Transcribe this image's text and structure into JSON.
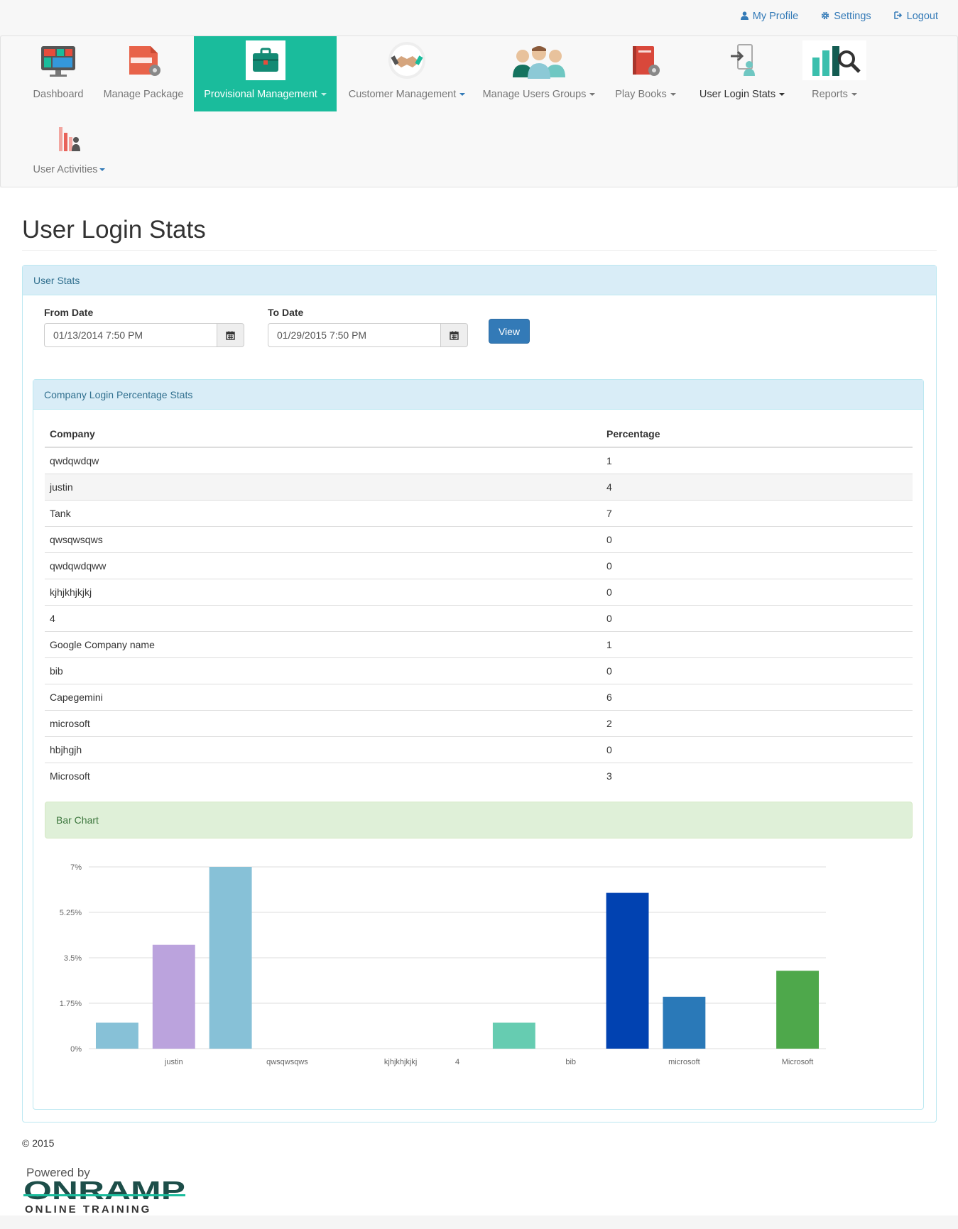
{
  "top_links": [
    {
      "label": "My Profile",
      "icon": "user-icon"
    },
    {
      "label": "Settings",
      "icon": "gear-icon"
    },
    {
      "label": "Logout",
      "icon": "logout-icon"
    }
  ],
  "nav": {
    "items": [
      {
        "label": "Dashboard",
        "icon": "dashboard-icon"
      },
      {
        "label": "Manage Package",
        "icon": "package-icon"
      },
      {
        "label": "Provisional Management",
        "icon": "briefcase-icon",
        "active": true
      },
      {
        "label": "Customer Management",
        "icon": "handshake-icon"
      },
      {
        "label": "Manage Users Groups",
        "icon": "users-group-icon"
      },
      {
        "label": "Play Books",
        "icon": "playbook-icon"
      },
      {
        "label": "User Login Stats",
        "icon": "login-stats-icon"
      },
      {
        "label": "Reports",
        "icon": "reports-icon"
      },
      {
        "label": "User Activities",
        "icon": "activities-icon"
      }
    ]
  },
  "page": {
    "title": "User Login Stats",
    "panel_title": "User Stats",
    "from_label": "From Date",
    "from_value": "01/13/2014 7:50 PM",
    "to_label": "To Date",
    "to_value": "01/29/2015 7:50 PM",
    "view_button": "View",
    "inner_panel_title": "Company Login Percentage Stats",
    "chart_heading": "Bar Chart",
    "copyright": "© 2015"
  },
  "table": {
    "headers": [
      "Company",
      "Percentage"
    ],
    "rows": [
      [
        "qwdqwdqw",
        "1"
      ],
      [
        "justin",
        "4"
      ],
      [
        "Tank",
        "7"
      ],
      [
        "qwsqwsqws",
        "0"
      ],
      [
        "qwdqwdqww",
        "0"
      ],
      [
        "kjhjkhjkjkj",
        "0"
      ],
      [
        "4",
        "0"
      ],
      [
        "Google Company name",
        "1"
      ],
      [
        "bib",
        "0"
      ],
      [
        "Capegemini",
        "6"
      ],
      [
        "microsoft",
        "2"
      ],
      [
        "hbjhgjh",
        "0"
      ],
      [
        "Microsoft",
        "3"
      ]
    ]
  },
  "chart_data": {
    "type": "bar",
    "categories": [
      "qwdqwdqw",
      "justin",
      "Tank",
      "qwsqwsqws",
      "qwdqwdqww",
      "kjhjkhjkjkj",
      "4",
      "Google Company name",
      "bib",
      "Capegemini",
      "microsoft",
      "hbjhgjh",
      "Microsoft"
    ],
    "values": [
      1,
      4,
      7,
      0,
      0,
      0,
      0,
      1,
      0,
      6,
      2,
      0,
      3
    ],
    "visible_x_labels": [
      "justin",
      "qwsqwsqws",
      "kjhjkhjkjkj",
      "4",
      "bib",
      "microsoft",
      "Microsoft"
    ],
    "y_ticks": [
      "0%",
      "1.75%",
      "3.5%",
      "5.25%",
      "7%"
    ],
    "ylim": [
      0,
      7
    ],
    "grid": true,
    "colors": [
      "#87c1d7",
      "#bba3dd",
      "#87c1d7",
      "#87c1d7",
      "#87c1d7",
      "#87c1d7",
      "#87c1d7",
      "#66ccb1",
      "#87c1d7",
      "#0142b1",
      "#2a79b8",
      "#87c1d7",
      "#4ea84b"
    ]
  },
  "footer": {
    "powered_by": "Powered by",
    "brand": "ONRAMP",
    "tagline": "ONLINE TRAINING"
  },
  "colors": {
    "accent": "#1abc9c",
    "link": "#337ab7",
    "panel_head_bg": "#d9edf7",
    "chart_head_bg": "#dff0d8"
  }
}
